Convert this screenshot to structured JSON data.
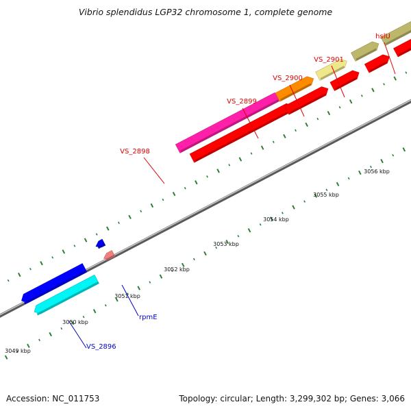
{
  "title": "Vibrio splendidus LGP32 chromosome 1, complete genome",
  "footer": {
    "accession": "Accession: NC_011753",
    "info": "Topology: circular; Length: 3,299,302 bp; Genes: 3,066"
  },
  "colors": {
    "backbone": "#8c8c8c",
    "tick": "#2e7d32",
    "forward_label": "#e00000",
    "reverse_label": "#0000cc"
  },
  "kbp_labels": [
    "3049 kbp",
    "3050 kbp",
    "3051 kbp",
    "3052 kbp",
    "3053 kbp",
    "3054 kbp",
    "3055 kbp",
    "3056 kbp"
  ],
  "genes": [
    {
      "id": "VS_2896",
      "strand": "-",
      "color": "#00f5f5",
      "label": "VS_2896"
    },
    {
      "id": "gene_blue_big",
      "strand": "-",
      "color": "#0000ff",
      "label": ""
    },
    {
      "id": "rpmE",
      "strand": "-",
      "color": "#0000ee",
      "label": "rpmE"
    },
    {
      "id": "rpmE_cds",
      "strand": "-",
      "color": "#f08080",
      "label": ""
    },
    {
      "id": "VS_2898",
      "strand": "+",
      "color": "#ff1fa8",
      "label": "VS_2898"
    },
    {
      "id": "VS_2898_cds",
      "strand": "+",
      "color": "#ff0000",
      "label": ""
    },
    {
      "id": "VS_2899",
      "strand": "+",
      "color": "#ff8c00",
      "label": "VS_2899"
    },
    {
      "id": "VS_2899_cds",
      "strand": "+",
      "color": "#ff0000",
      "label": ""
    },
    {
      "id": "VS_2900",
      "strand": "+",
      "color": "#f0e68c",
      "label": "VS_2900"
    },
    {
      "id": "VS_2900_cds",
      "strand": "+",
      "color": "#ff0000",
      "label": ""
    },
    {
      "id": "VS_2901",
      "strand": "+",
      "color": "#bdb76b",
      "label": "VS_2901"
    },
    {
      "id": "VS_2901_cds",
      "strand": "+",
      "color": "#ff0000",
      "label": ""
    },
    {
      "id": "hslU",
      "strand": "+",
      "color": "#bdb76b",
      "label": "hslU"
    },
    {
      "id": "hslU_cds",
      "strand": "+",
      "color": "#ff0000",
      "label": ""
    },
    {
      "id": "edge_left",
      "strand": "+",
      "color": "#ff0000",
      "label": ""
    }
  ]
}
